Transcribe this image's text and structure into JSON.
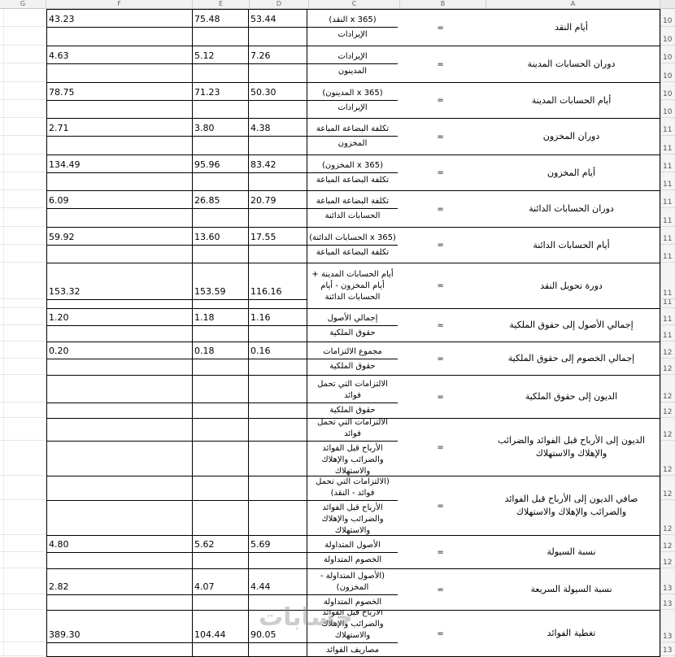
{
  "sheet": {
    "column_headers": [
      "G",
      "F",
      "E",
      "D",
      "C",
      "B",
      "A"
    ],
    "equals": "=",
    "watermark": "حسابات",
    "row_numbers": [
      "10",
      "10",
      "10",
      "10",
      "10",
      "10",
      "11",
      "11",
      "11",
      "11",
      "11",
      "11",
      "11",
      "11",
      "11",
      "11",
      "11",
      "11",
      "12",
      "12",
      "12",
      "12",
      "12",
      "12",
      "12",
      "12",
      "12",
      "12",
      "13",
      "13",
      "13",
      "13"
    ],
    "blocks": [
      {
        "label": "أيام النقد",
        "fraction": true,
        "numerator": "(365 x النقد)",
        "denominator": "الإيرادات",
        "values": {
          "d": "53.44",
          "e": "75.48",
          "f": "43.23"
        }
      },
      {
        "label": "دوران الحسابات المدينة",
        "fraction": true,
        "numerator": "الإيرادات",
        "denominator": "المدينون",
        "values": {
          "d": "7.26",
          "e": "5.12",
          "f": "4.63"
        }
      },
      {
        "label": "أيام الحسابات المدينة",
        "fraction": true,
        "numerator": "(365 x المدينون)",
        "denominator": "الإيرادات",
        "values": {
          "d": "50.30",
          "e": "71.23",
          "f": "78.75"
        }
      },
      {
        "label": "دوران المخزون",
        "fraction": true,
        "numerator": "تكلفة البضاعة المباعة",
        "denominator": "المخزون",
        "values": {
          "d": "4.38",
          "e": "3.80",
          "f": "2.71"
        }
      },
      {
        "label": "أيام المخزون",
        "fraction": true,
        "numerator": "(365 x المخزون)",
        "denominator": "تكلفة البضاعة المباعة",
        "values": {
          "d": "83.42",
          "e": "95.96",
          "f": "134.49"
        }
      },
      {
        "label": "دوران الحسابات الدائنة",
        "fraction": true,
        "numerator": "تكلفة البضاعة المباعة",
        "denominator": "الحسابات الدائنة",
        "values": {
          "d": "20.79",
          "e": "26.85",
          "f": "6.09"
        }
      },
      {
        "label": "أيام الحسابات الدائنة",
        "fraction": true,
        "numerator": "(365 x الحسابات الدائنة)",
        "denominator": "تكلفة البضاعة المباعة",
        "values": {
          "d": "17.55",
          "e": "13.60",
          "f": "59.92"
        }
      },
      {
        "label": "دورة تحويل النقد",
        "fraction": false,
        "numerator": "أيام الحسابات المدينة +\nأيام المخزون - أيام\nالحسابات الدائنة",
        "denominator": "",
        "values": {
          "d": "116.16",
          "e": "153.59",
          "f": "153.32"
        }
      },
      {
        "label": "إجمالي الأصول إلى حقوق الملكية",
        "fraction": true,
        "numerator": "إجمالي الأصول",
        "denominator": "حقوق الملكية",
        "values": {
          "d": "1.16",
          "e": "1.18",
          "f": "1.20"
        }
      },
      {
        "label": "إجمالي الخصوم إلى حقوق الملكية",
        "fraction": true,
        "numerator": "مجموع الالتزامات",
        "denominator": "حقوق الملكية",
        "values": {
          "d": "0.16",
          "e": "0.18",
          "f": "0.20"
        }
      },
      {
        "label": "الديون إلى حقوق الملكية",
        "fraction": true,
        "numerator": "الالتزامات التي تحمل\nفوائد",
        "denominator": "حقوق الملكية",
        "values": {
          "d": "",
          "e": "",
          "f": ""
        }
      },
      {
        "label": "الديون إلى الأرباح قبل الفوائد والضرائب والإهلاك والاستهلاك",
        "fraction": true,
        "numerator": "الالتزامات التي تحمل\nفوائد",
        "denominator": "الأرباح قبل الفوائد\nوالضرائب والإهلاك\nوالاستهلاك",
        "values": {
          "d": "",
          "e": "",
          "f": ""
        }
      },
      {
        "label": "صافي الديون إلى الأرباح قبل الفوائد والضرائب والإهلاك والاستهلاك",
        "fraction": true,
        "numerator": "(الالتزامات التي تحمل\nفوائد - النقد)",
        "denominator": "الأرباح قبل الفوائد\nوالضرائب والإهلاك\nوالاستهلاك",
        "values": {
          "d": "",
          "e": "",
          "f": ""
        }
      },
      {
        "label": "نسبة السيولة",
        "fraction": true,
        "numerator": "الأصول المتداولة",
        "denominator": "الخصوم المتداولة",
        "values": {
          "d": "5.69",
          "e": "5.62",
          "f": "4.80"
        }
      },
      {
        "label": "نسبة السيولة السريعة",
        "fraction": true,
        "numerator": "(الأصول المتداولة -\nالمخزون)",
        "denominator": "الخصوم المتداولة",
        "values": {
          "d": "4.44",
          "e": "4.07",
          "f": "2.82"
        }
      },
      {
        "label": "تغطية الفوائد",
        "fraction": true,
        "numerator": "الأرباح قبل الفوائد\nوالضرائب والإهلاك\nوالاستهلاك",
        "denominator": "مصاريف الفوائد",
        "values": {
          "d": "90.05",
          "e": "104.44",
          "f": "389.30"
        }
      }
    ]
  }
}
